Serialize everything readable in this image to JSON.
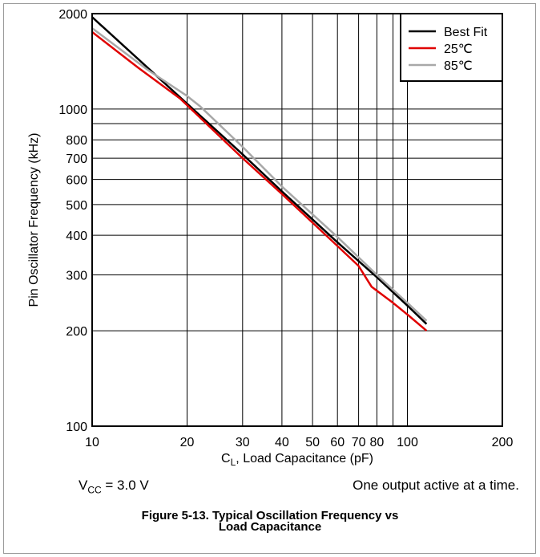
{
  "chart_data": {
    "type": "line",
    "xlabel": {
      "prefix": "C",
      "sub": "L",
      "suffix": ", Load Capacitance (pF)"
    },
    "ylabel": "Pin Oscillator Frequency (kHz)",
    "x_scale": "log",
    "y_scale": "log",
    "xlim": [
      10,
      200
    ],
    "ylim": [
      100,
      2000
    ],
    "x_ticks": [
      10,
      20,
      30,
      40,
      50,
      60,
      70,
      80,
      100,
      200
    ],
    "x_tick_labels": [
      "10",
      "20",
      "30",
      "40",
      "50",
      "60",
      "70",
      "80",
      "100",
      "200"
    ],
    "x_gridlines": [
      20,
      30,
      40,
      50,
      60,
      70,
      80,
      90,
      100
    ],
    "y_ticks": [
      100,
      200,
      300,
      400,
      500,
      600,
      700,
      800,
      1000,
      2000
    ],
    "y_tick_labels": [
      "100",
      "200",
      "300",
      "400",
      "500",
      "600",
      "700",
      "800",
      "1000",
      "2000"
    ],
    "y_gridlines": [
      200,
      300,
      400,
      500,
      600,
      700,
      800,
      900,
      1000
    ],
    "grid": true,
    "legend_position": "top-right",
    "series": [
      {
        "name": "Best Fit",
        "color": "#000000",
        "x": [
          10,
          20,
          30,
          40,
          60,
          80,
          100,
          115
        ],
        "y": [
          1950,
          1040,
          720,
          550,
          380,
          295,
          240,
          210
        ]
      },
      {
        "name": "25℃",
        "color": "#e00000",
        "x": [
          10,
          14,
          19,
          30,
          40,
          60,
          70,
          77,
          90,
          100,
          115
        ],
        "y": [
          1750,
          1350,
          1080,
          700,
          540,
          370,
          320,
          275,
          245,
          225,
          200
        ]
      },
      {
        "name": "85℃",
        "color": "#a8a8a8",
        "x": [
          10,
          15,
          20,
          22,
          30,
          40,
          60,
          80,
          100,
          115
        ],
        "y": [
          1800,
          1330,
          1100,
          1020,
          760,
          570,
          395,
          300,
          245,
          215
        ]
      }
    ]
  },
  "conditions": {
    "vcc": {
      "prefix": "V",
      "sub": "CC",
      "suffix": " = 3.0 V"
    },
    "note": "One output active at a time."
  },
  "caption": {
    "line1": "Figure 5-13. Typical Oscillation Frequency vs",
    "line2": "Load Capacitance"
  }
}
